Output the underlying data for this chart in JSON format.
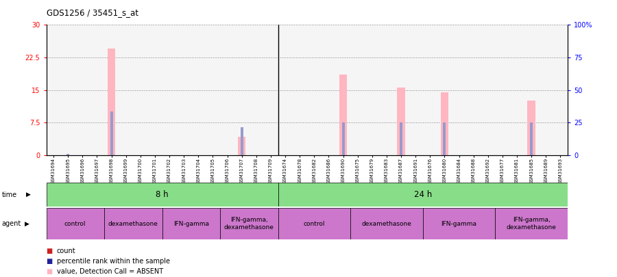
{
  "title": "GDS1256 / 35451_s_at",
  "samples": [
    "GSM31694",
    "GSM31695",
    "GSM31696",
    "GSM31697",
    "GSM31698",
    "GSM31699",
    "GSM31700",
    "GSM31701",
    "GSM31702",
    "GSM31703",
    "GSM31704",
    "GSM31705",
    "GSM31706",
    "GSM31707",
    "GSM31708",
    "GSM31709",
    "GSM31674",
    "GSM31678",
    "GSM31682",
    "GSM31686",
    "GSM31690",
    "GSM31675",
    "GSM31679",
    "GSM31683",
    "GSM31687",
    "GSM31691",
    "GSM31676",
    "GSM31680",
    "GSM31684",
    "GSM31688",
    "GSM31692",
    "GSM31677",
    "GSM31681",
    "GSM31685",
    "GSM31689",
    "GSM31693"
  ],
  "pink_values": [
    0,
    0,
    0,
    0,
    24.5,
    0,
    0,
    0,
    0,
    0,
    0,
    0,
    0,
    4.2,
    0,
    0,
    0,
    0,
    0,
    0,
    18.5,
    0,
    0,
    0,
    15.5,
    0,
    0,
    14.5,
    0,
    0,
    0,
    0,
    0,
    12.5,
    0,
    0
  ],
  "blue_values": [
    0,
    0.3,
    0,
    0,
    10,
    0,
    0,
    0,
    0,
    0,
    0,
    0,
    0,
    6.5,
    0,
    0,
    0,
    0,
    0,
    0,
    7.5,
    0,
    0,
    0,
    7.5,
    0,
    0,
    7.5,
    0,
    0,
    0,
    0,
    0,
    7.5,
    0,
    0
  ],
  "ylim_left": [
    0,
    30
  ],
  "ylim_right": [
    0,
    100
  ],
  "yticks_left": [
    0,
    7.5,
    15,
    22.5,
    30
  ],
  "ytick_labels_left": [
    "0",
    "7.5",
    "15",
    "22.5",
    "30"
  ],
  "yticks_right": [
    0,
    25,
    50,
    75,
    100
  ],
  "ytick_labels_right": [
    "0",
    "25",
    "50",
    "75",
    "100%"
  ],
  "pink_color": "#FFB6C1",
  "blue_color": "#9999CC",
  "red_color": "#CC2222",
  "dark_blue_color": "#222299",
  "green_time_color": "#88DD88",
  "purple_agent_color": "#CC77CC",
  "chart_bg": "#f5f5f5",
  "agent_groups": [
    {
      "label": "control",
      "start": 0,
      "end": 4
    },
    {
      "label": "dexamethasone",
      "start": 4,
      "end": 8
    },
    {
      "label": "IFN-gamma",
      "start": 8,
      "end": 12
    },
    {
      "label": "IFN-gamma,\ndexamethasone",
      "start": 12,
      "end": 16
    },
    {
      "label": "control",
      "start": 16,
      "end": 21
    },
    {
      "label": "dexamethasone",
      "start": 21,
      "end": 26
    },
    {
      "label": "IFN-gamma",
      "start": 26,
      "end": 31
    },
    {
      "label": "IFN-gamma,\ndexamethasone",
      "start": 31,
      "end": 36
    }
  ]
}
